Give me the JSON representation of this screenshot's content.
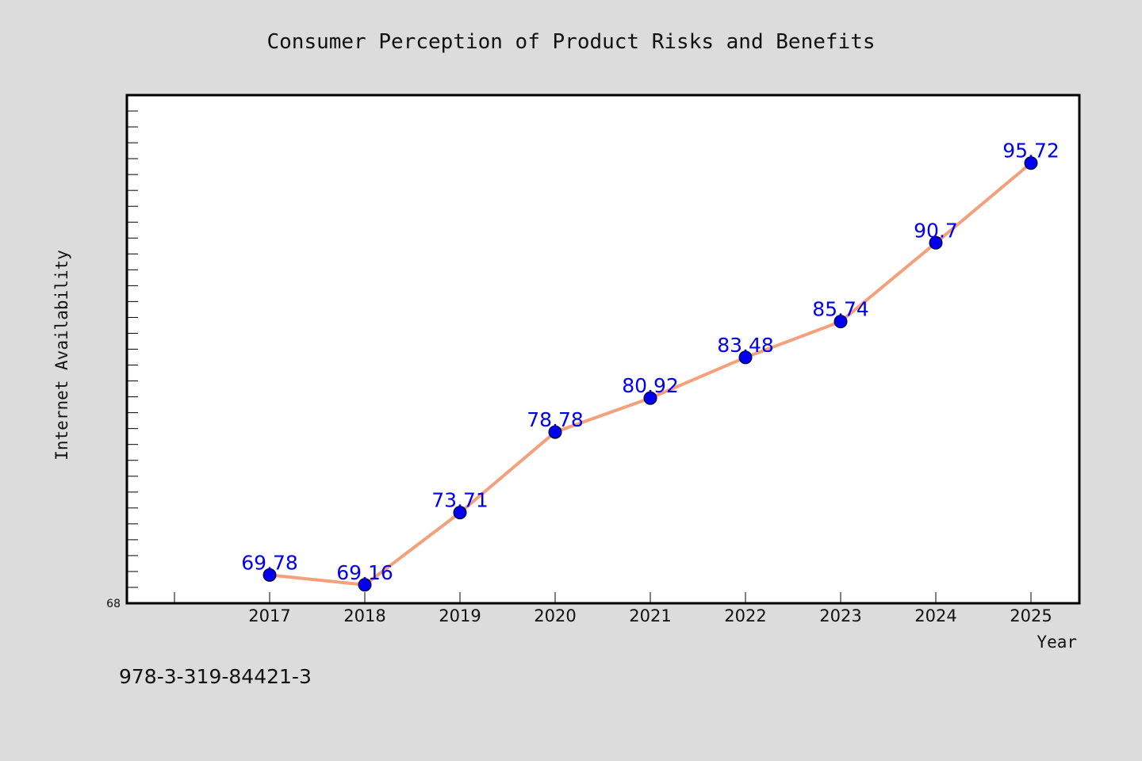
{
  "chart_data": {
    "type": "line",
    "title": "Consumer Perception of Product Risks and Benefits",
    "xlabel": "Year",
    "ylabel": "Internet Availability",
    "categories": [
      "2017",
      "2018",
      "2019",
      "2020",
      "2021",
      "2022",
      "2023",
      "2024",
      "2025"
    ],
    "series": [
      {
        "values": [
          69.78,
          69.16,
          73.71,
          78.78,
          80.92,
          83.48,
          85.74,
          90.7,
          95.72
        ]
      }
    ],
    "data_labels": [
      "69.78",
      "69.16",
      "73.71",
      "78.78",
      "80.92",
      "83.48",
      "85.74",
      "90.7",
      "95.72"
    ],
    "ylim": [
      68,
      100
    ],
    "y_tick_labels": [
      "68"
    ],
    "legend": "none",
    "grid": false,
    "line_color": "#f4a07c",
    "marker_color": "#0000ee",
    "plot_background": "#ffffff",
    "page_background": "#dcdcdc"
  },
  "footer": {
    "isbn": "978-3-319-84421-3"
  }
}
